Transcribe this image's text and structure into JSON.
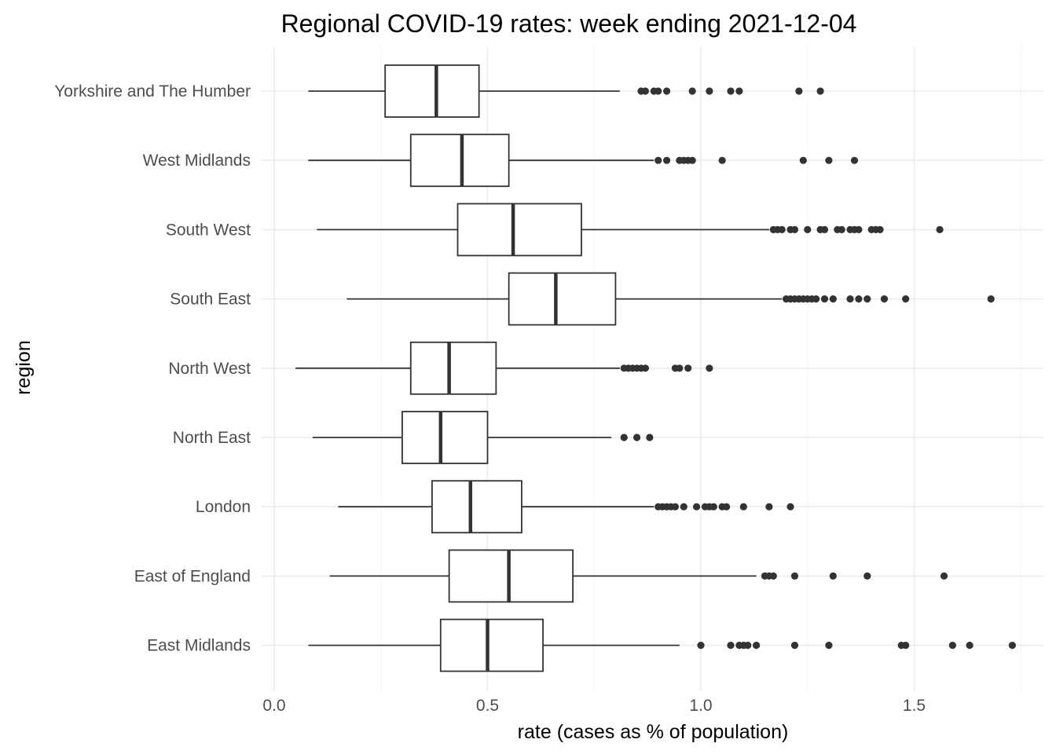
{
  "chart_data": {
    "type": "boxplot",
    "orientation": "horizontal",
    "title": "Regional COVID-19 rates: week ending 2021-12-04",
    "xlabel": "rate (cases as % of population)",
    "ylabel": "region",
    "xlim": [
      -0.02,
      1.77
    ],
    "x_ticks": [
      0.0,
      0.5,
      1.0,
      1.5
    ],
    "x_tick_labels": [
      "0.0",
      "0.5",
      "1.0",
      "1.5"
    ],
    "grid": true,
    "colors": {
      "box_line": "#333333",
      "outlier": "#333333",
      "grid_major": "#ebebeb",
      "grid_minor": "#f5f5f5"
    },
    "categories": [
      "East Midlands",
      "East of England",
      "London",
      "North East",
      "North West",
      "South East",
      "South West",
      "West Midlands",
      "Yorkshire and The Humber"
    ],
    "boxes": [
      {
        "region": "East Midlands",
        "whisker_low": 0.08,
        "q1": 0.39,
        "median": 0.5,
        "q3": 0.63,
        "whisker_high": 0.95,
        "outliers": [
          1.0,
          1.07,
          1.09,
          1.1,
          1.11,
          1.13,
          1.22,
          1.3,
          1.47,
          1.48,
          1.59,
          1.63,
          1.73
        ]
      },
      {
        "region": "East of England",
        "whisker_low": 0.13,
        "q1": 0.41,
        "median": 0.55,
        "q3": 0.7,
        "whisker_high": 1.13,
        "outliers": [
          1.15,
          1.16,
          1.17,
          1.22,
          1.31,
          1.39,
          1.57
        ]
      },
      {
        "region": "London",
        "whisker_low": 0.15,
        "q1": 0.37,
        "median": 0.46,
        "q3": 0.58,
        "whisker_high": 0.89,
        "outliers": [
          0.9,
          0.91,
          0.92,
          0.93,
          0.94,
          0.96,
          0.99,
          1.01,
          1.02,
          1.03,
          1.05,
          1.06,
          1.1,
          1.16,
          1.21
        ]
      },
      {
        "region": "North East",
        "whisker_low": 0.09,
        "q1": 0.3,
        "median": 0.39,
        "q3": 0.5,
        "whisker_high": 0.79,
        "outliers": [
          0.82,
          0.85,
          0.88
        ]
      },
      {
        "region": "North West",
        "whisker_low": 0.05,
        "q1": 0.32,
        "median": 0.41,
        "q3": 0.52,
        "whisker_high": 0.81,
        "outliers": [
          0.82,
          0.83,
          0.84,
          0.85,
          0.86,
          0.87,
          0.94,
          0.95,
          0.97,
          1.02
        ]
      },
      {
        "region": "South East",
        "whisker_low": 0.17,
        "q1": 0.55,
        "median": 0.66,
        "q3": 0.8,
        "whisker_high": 1.19,
        "outliers": [
          1.2,
          1.21,
          1.22,
          1.23,
          1.24,
          1.25,
          1.26,
          1.27,
          1.29,
          1.31,
          1.35,
          1.37,
          1.39,
          1.43,
          1.48,
          1.68
        ]
      },
      {
        "region": "South West",
        "whisker_low": 0.1,
        "q1": 0.43,
        "median": 0.56,
        "q3": 0.72,
        "whisker_high": 1.16,
        "outliers": [
          1.17,
          1.18,
          1.19,
          1.21,
          1.22,
          1.25,
          1.28,
          1.29,
          1.32,
          1.33,
          1.35,
          1.36,
          1.37,
          1.4,
          1.41,
          1.42,
          1.56
        ]
      },
      {
        "region": "West Midlands",
        "whisker_low": 0.08,
        "q1": 0.32,
        "median": 0.44,
        "q3": 0.55,
        "whisker_high": 0.89,
        "outliers": [
          0.9,
          0.92,
          0.95,
          0.96,
          0.97,
          0.98,
          1.05,
          1.24,
          1.3,
          1.36
        ]
      },
      {
        "region": "Yorkshire and The Humber",
        "whisker_low": 0.08,
        "q1": 0.26,
        "median": 0.38,
        "q3": 0.48,
        "whisker_high": 0.81,
        "outliers": [
          0.86,
          0.87,
          0.89,
          0.9,
          0.92,
          0.98,
          1.02,
          1.07,
          1.09,
          1.23,
          1.28
        ]
      }
    ]
  }
}
